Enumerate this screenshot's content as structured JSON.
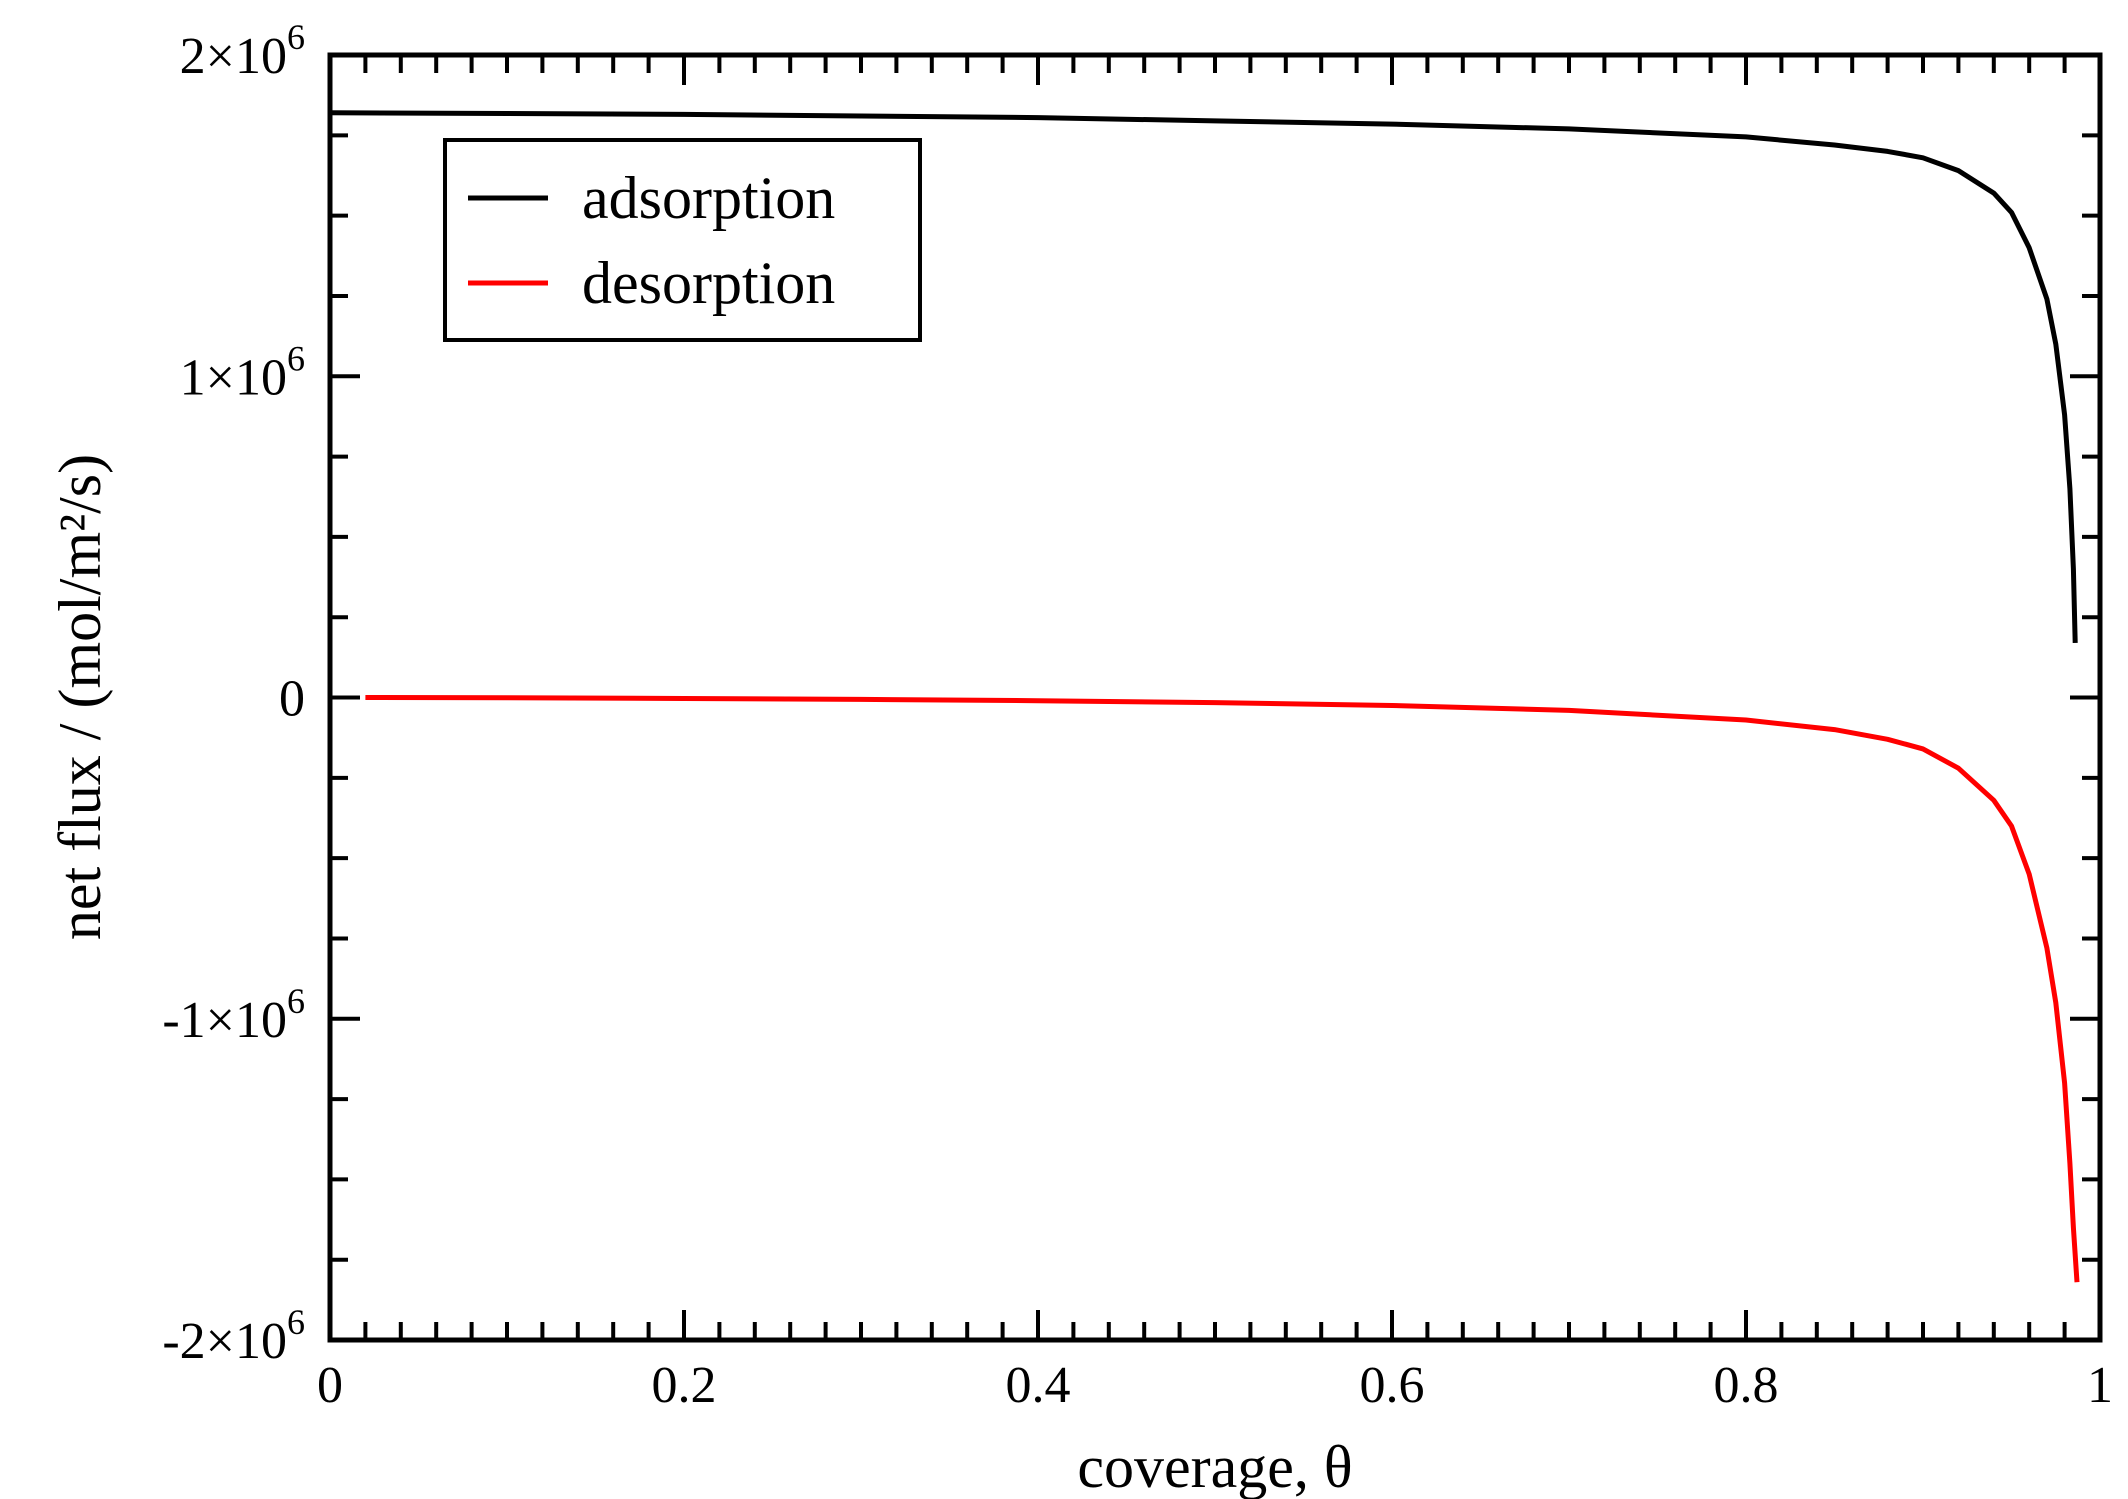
{
  "chart_data": {
    "type": "line",
    "title": "",
    "xlabel": "coverage, θ",
    "ylabel": "net flux / (mol/m²/s)",
    "xlim": [
      0,
      1
    ],
    "ylim": [
      -2000000,
      2000000
    ],
    "grid": false,
    "legend_position": "top-left",
    "x_ticks": [
      {
        "value": 0,
        "label": "0"
      },
      {
        "value": 0.2,
        "label": "0.2"
      },
      {
        "value": 0.4,
        "label": "0.4"
      },
      {
        "value": 0.6,
        "label": "0.6"
      },
      {
        "value": 0.8,
        "label": "0.8"
      },
      {
        "value": 1,
        "label": "1"
      }
    ],
    "y_ticks": [
      {
        "value": 2000000,
        "mantissa": "2×10",
        "exp": "6"
      },
      {
        "value": 1000000,
        "mantissa": "1×10",
        "exp": "6"
      },
      {
        "value": 0,
        "mantissa": "0",
        "exp": ""
      },
      {
        "value": -1000000,
        "mantissa": "-1×10",
        "exp": "6"
      },
      {
        "value": -2000000,
        "mantissa": "-2×10",
        "exp": "6"
      }
    ],
    "series": [
      {
        "name": "adsorption",
        "color": "#000000",
        "points": [
          [
            0,
            1820000
          ],
          [
            0.1,
            1818000
          ],
          [
            0.2,
            1815000
          ],
          [
            0.3,
            1810000
          ],
          [
            0.4,
            1805000
          ],
          [
            0.5,
            1795000
          ],
          [
            0.6,
            1785000
          ],
          [
            0.7,
            1770000
          ],
          [
            0.8,
            1745000
          ],
          [
            0.85,
            1720000
          ],
          [
            0.88,
            1700000
          ],
          [
            0.9,
            1680000
          ],
          [
            0.92,
            1640000
          ],
          [
            0.94,
            1570000
          ],
          [
            0.95,
            1510000
          ],
          [
            0.96,
            1400000
          ],
          [
            0.97,
            1240000
          ],
          [
            0.975,
            1100000
          ],
          [
            0.98,
            880000
          ],
          [
            0.983,
            650000
          ],
          [
            0.985,
            400000
          ],
          [
            0.986,
            170000
          ]
        ]
      },
      {
        "name": "desorption",
        "color": "#ff0000",
        "points": [
          [
            0.02,
            0
          ],
          [
            0.1,
            -1000
          ],
          [
            0.2,
            -3000
          ],
          [
            0.3,
            -6000
          ],
          [
            0.4,
            -10000
          ],
          [
            0.5,
            -16000
          ],
          [
            0.6,
            -25000
          ],
          [
            0.7,
            -40000
          ],
          [
            0.8,
            -70000
          ],
          [
            0.85,
            -100000
          ],
          [
            0.88,
            -130000
          ],
          [
            0.9,
            -160000
          ],
          [
            0.92,
            -220000
          ],
          [
            0.94,
            -320000
          ],
          [
            0.95,
            -400000
          ],
          [
            0.96,
            -550000
          ],
          [
            0.97,
            -780000
          ],
          [
            0.975,
            -950000
          ],
          [
            0.98,
            -1200000
          ],
          [
            0.983,
            -1450000
          ],
          [
            0.985,
            -1650000
          ],
          [
            0.987,
            -1820000
          ]
        ]
      }
    ]
  }
}
